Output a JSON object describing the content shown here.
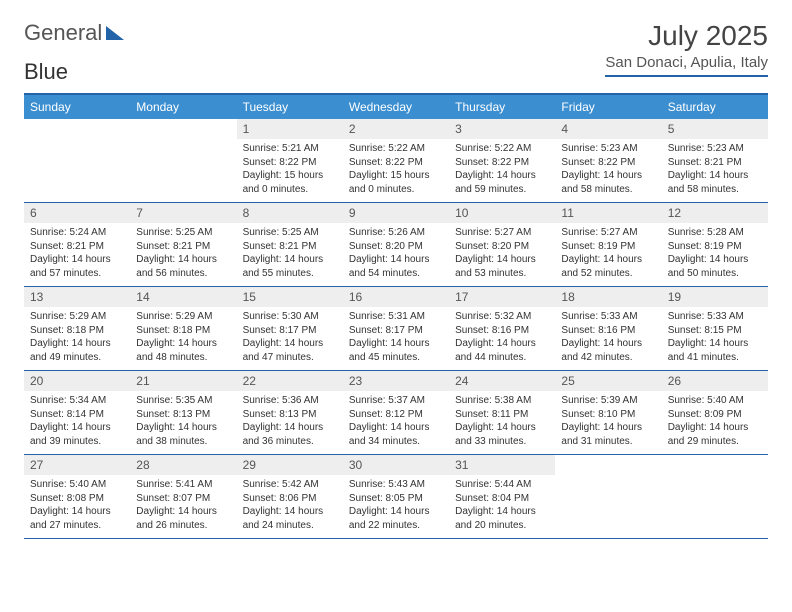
{
  "brand": {
    "word1": "General",
    "word2": "Blue"
  },
  "title": "July 2025",
  "location": "San Donaci, Apulia, Italy",
  "colors": {
    "header_bg": "#3b8ed0",
    "header_text": "#ffffff",
    "rule": "#2364a8",
    "daynum_bg": "#eeeeee",
    "text": "#333333"
  },
  "day_headers": [
    "Sunday",
    "Monday",
    "Tuesday",
    "Wednesday",
    "Thursday",
    "Friday",
    "Saturday"
  ],
  "weeks": [
    [
      {
        "n": "",
        "sr": "",
        "ss": "",
        "dl": ""
      },
      {
        "n": "",
        "sr": "",
        "ss": "",
        "dl": ""
      },
      {
        "n": "1",
        "sr": "Sunrise: 5:21 AM",
        "ss": "Sunset: 8:22 PM",
        "dl": "Daylight: 15 hours and 0 minutes."
      },
      {
        "n": "2",
        "sr": "Sunrise: 5:22 AM",
        "ss": "Sunset: 8:22 PM",
        "dl": "Daylight: 15 hours and 0 minutes."
      },
      {
        "n": "3",
        "sr": "Sunrise: 5:22 AM",
        "ss": "Sunset: 8:22 PM",
        "dl": "Daylight: 14 hours and 59 minutes."
      },
      {
        "n": "4",
        "sr": "Sunrise: 5:23 AM",
        "ss": "Sunset: 8:22 PM",
        "dl": "Daylight: 14 hours and 58 minutes."
      },
      {
        "n": "5",
        "sr": "Sunrise: 5:23 AM",
        "ss": "Sunset: 8:21 PM",
        "dl": "Daylight: 14 hours and 58 minutes."
      }
    ],
    [
      {
        "n": "6",
        "sr": "Sunrise: 5:24 AM",
        "ss": "Sunset: 8:21 PM",
        "dl": "Daylight: 14 hours and 57 minutes."
      },
      {
        "n": "7",
        "sr": "Sunrise: 5:25 AM",
        "ss": "Sunset: 8:21 PM",
        "dl": "Daylight: 14 hours and 56 minutes."
      },
      {
        "n": "8",
        "sr": "Sunrise: 5:25 AM",
        "ss": "Sunset: 8:21 PM",
        "dl": "Daylight: 14 hours and 55 minutes."
      },
      {
        "n": "9",
        "sr": "Sunrise: 5:26 AM",
        "ss": "Sunset: 8:20 PM",
        "dl": "Daylight: 14 hours and 54 minutes."
      },
      {
        "n": "10",
        "sr": "Sunrise: 5:27 AM",
        "ss": "Sunset: 8:20 PM",
        "dl": "Daylight: 14 hours and 53 minutes."
      },
      {
        "n": "11",
        "sr": "Sunrise: 5:27 AM",
        "ss": "Sunset: 8:19 PM",
        "dl": "Daylight: 14 hours and 52 minutes."
      },
      {
        "n": "12",
        "sr": "Sunrise: 5:28 AM",
        "ss": "Sunset: 8:19 PM",
        "dl": "Daylight: 14 hours and 50 minutes."
      }
    ],
    [
      {
        "n": "13",
        "sr": "Sunrise: 5:29 AM",
        "ss": "Sunset: 8:18 PM",
        "dl": "Daylight: 14 hours and 49 minutes."
      },
      {
        "n": "14",
        "sr": "Sunrise: 5:29 AM",
        "ss": "Sunset: 8:18 PM",
        "dl": "Daylight: 14 hours and 48 minutes."
      },
      {
        "n": "15",
        "sr": "Sunrise: 5:30 AM",
        "ss": "Sunset: 8:17 PM",
        "dl": "Daylight: 14 hours and 47 minutes."
      },
      {
        "n": "16",
        "sr": "Sunrise: 5:31 AM",
        "ss": "Sunset: 8:17 PM",
        "dl": "Daylight: 14 hours and 45 minutes."
      },
      {
        "n": "17",
        "sr": "Sunrise: 5:32 AM",
        "ss": "Sunset: 8:16 PM",
        "dl": "Daylight: 14 hours and 44 minutes."
      },
      {
        "n": "18",
        "sr": "Sunrise: 5:33 AM",
        "ss": "Sunset: 8:16 PM",
        "dl": "Daylight: 14 hours and 42 minutes."
      },
      {
        "n": "19",
        "sr": "Sunrise: 5:33 AM",
        "ss": "Sunset: 8:15 PM",
        "dl": "Daylight: 14 hours and 41 minutes."
      }
    ],
    [
      {
        "n": "20",
        "sr": "Sunrise: 5:34 AM",
        "ss": "Sunset: 8:14 PM",
        "dl": "Daylight: 14 hours and 39 minutes."
      },
      {
        "n": "21",
        "sr": "Sunrise: 5:35 AM",
        "ss": "Sunset: 8:13 PM",
        "dl": "Daylight: 14 hours and 38 minutes."
      },
      {
        "n": "22",
        "sr": "Sunrise: 5:36 AM",
        "ss": "Sunset: 8:13 PM",
        "dl": "Daylight: 14 hours and 36 minutes."
      },
      {
        "n": "23",
        "sr": "Sunrise: 5:37 AM",
        "ss": "Sunset: 8:12 PM",
        "dl": "Daylight: 14 hours and 34 minutes."
      },
      {
        "n": "24",
        "sr": "Sunrise: 5:38 AM",
        "ss": "Sunset: 8:11 PM",
        "dl": "Daylight: 14 hours and 33 minutes."
      },
      {
        "n": "25",
        "sr": "Sunrise: 5:39 AM",
        "ss": "Sunset: 8:10 PM",
        "dl": "Daylight: 14 hours and 31 minutes."
      },
      {
        "n": "26",
        "sr": "Sunrise: 5:40 AM",
        "ss": "Sunset: 8:09 PM",
        "dl": "Daylight: 14 hours and 29 minutes."
      }
    ],
    [
      {
        "n": "27",
        "sr": "Sunrise: 5:40 AM",
        "ss": "Sunset: 8:08 PM",
        "dl": "Daylight: 14 hours and 27 minutes."
      },
      {
        "n": "28",
        "sr": "Sunrise: 5:41 AM",
        "ss": "Sunset: 8:07 PM",
        "dl": "Daylight: 14 hours and 26 minutes."
      },
      {
        "n": "29",
        "sr": "Sunrise: 5:42 AM",
        "ss": "Sunset: 8:06 PM",
        "dl": "Daylight: 14 hours and 24 minutes."
      },
      {
        "n": "30",
        "sr": "Sunrise: 5:43 AM",
        "ss": "Sunset: 8:05 PM",
        "dl": "Daylight: 14 hours and 22 minutes."
      },
      {
        "n": "31",
        "sr": "Sunrise: 5:44 AM",
        "ss": "Sunset: 8:04 PM",
        "dl": "Daylight: 14 hours and 20 minutes."
      },
      {
        "n": "",
        "sr": "",
        "ss": "",
        "dl": ""
      },
      {
        "n": "",
        "sr": "",
        "ss": "",
        "dl": ""
      }
    ]
  ]
}
